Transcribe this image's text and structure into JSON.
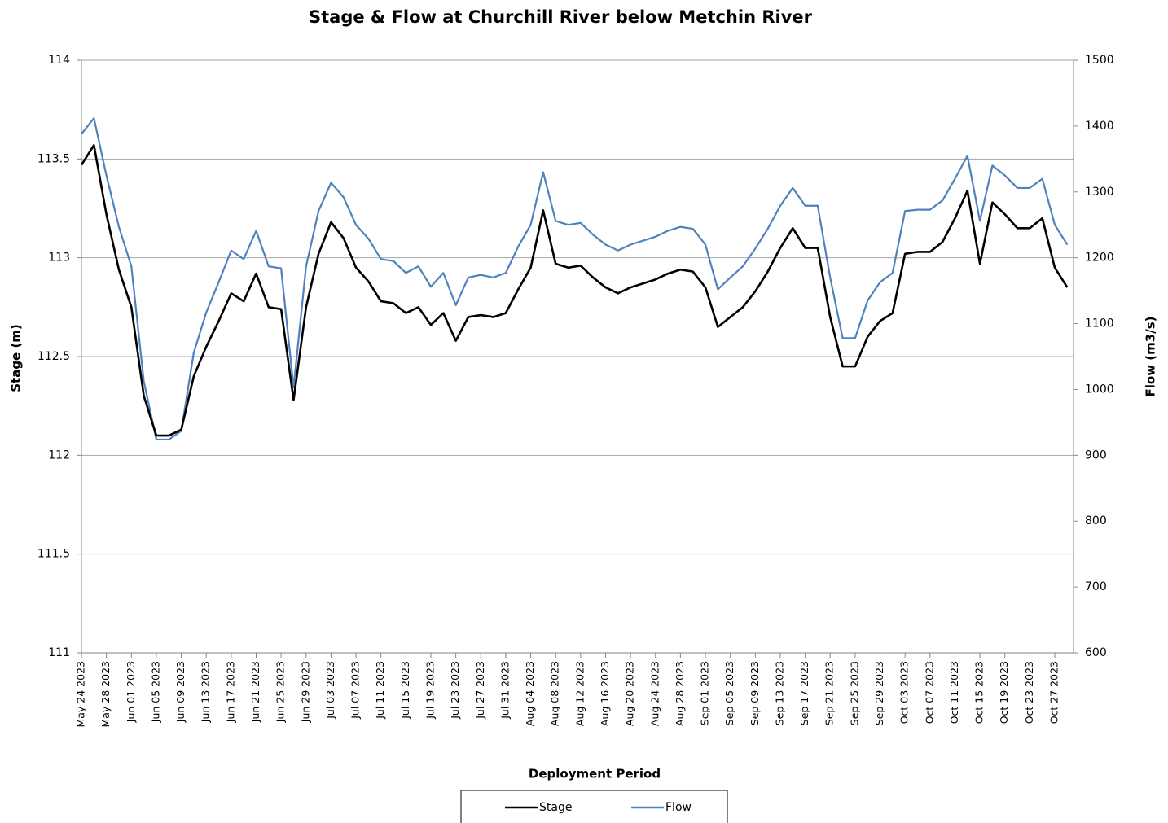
{
  "chart_data": {
    "type": "line",
    "title": "Stage & Flow at Churchill River below Metchin River",
    "xlabel": "Deployment Period",
    "ylabel": "Stage (m)",
    "y2label": "Flow (m3/s)",
    "x": [
      "May 24 2023",
      "May 26 2023",
      "May 28 2023",
      "May 30 2023",
      "Jun 01 2023",
      "Jun 03 2023",
      "Jun 05 2023",
      "Jun 07 2023",
      "Jun 09 2023",
      "Jun 11 2023",
      "Jun 13 2023",
      "Jun 15 2023",
      "Jun 17 2023",
      "Jun 19 2023",
      "Jun 21 2023",
      "Jun 23 2023",
      "Jun 25 2023",
      "Jun 27 2023",
      "Jun 29 2023",
      "Jul 01 2023",
      "Jul 03 2023",
      "Jul 05 2023",
      "Jul 07 2023",
      "Jul 09 2023",
      "Jul 11 2023",
      "Jul 13 2023",
      "Jul 15 2023",
      "Jul 17 2023",
      "Jul 19 2023",
      "Jul 21 2023",
      "Jul 23 2023",
      "Jul 25 2023",
      "Jul 27 2023",
      "Jul 29 2023",
      "Jul 31 2023",
      "Aug 02 2023",
      "Aug 04 2023",
      "Aug 06 2023",
      "Aug 08 2023",
      "Aug 10 2023",
      "Aug 12 2023",
      "Aug 14 2023",
      "Aug 16 2023",
      "Aug 18 2023",
      "Aug 20 2023",
      "Aug 22 2023",
      "Aug 24 2023",
      "Aug 26 2023",
      "Aug 28 2023",
      "Aug 30 2023",
      "Sep 01 2023",
      "Sep 03 2023",
      "Sep 05 2023",
      "Sep 07 2023",
      "Sep 09 2023",
      "Sep 11 2023",
      "Sep 13 2023",
      "Sep 15 2023",
      "Sep 17 2023",
      "Sep 19 2023",
      "Sep 21 2023",
      "Sep 23 2023",
      "Sep 25 2023",
      "Sep 27 2023",
      "Sep 29 2023",
      "Oct 01 2023",
      "Oct 03 2023",
      "Oct 05 2023",
      "Oct 07 2023",
      "Oct 09 2023",
      "Oct 11 2023",
      "Oct 13 2023",
      "Oct 15 2023",
      "Oct 17 2023",
      "Oct 19 2023",
      "Oct 21 2023",
      "Oct 23 2023",
      "Oct 25 2023",
      "Oct 27 2023",
      "Oct 29 2023"
    ],
    "series": [
      {
        "name": "Stage",
        "color": "#000000",
        "values": [
          113.47,
          113.57,
          113.22,
          112.94,
          112.75,
          112.3,
          112.1,
          112.1,
          112.13,
          112.4,
          112.55,
          112.68,
          112.82,
          112.78,
          112.92,
          112.75,
          112.74,
          112.28,
          112.75,
          113.02,
          113.18,
          113.1,
          112.95,
          112.88,
          112.78,
          112.77,
          112.72,
          112.75,
          112.66,
          112.72,
          112.58,
          112.7,
          112.71,
          112.7,
          112.72,
          112.84,
          112.95,
          113.24,
          112.97,
          112.95,
          112.96,
          112.9,
          112.85,
          112.82,
          112.85,
          112.87,
          112.89,
          112.92,
          112.94,
          112.93,
          112.85,
          112.65,
          112.7,
          112.75,
          112.83,
          112.93,
          113.05,
          113.15,
          113.05,
          113.05,
          112.7,
          112.45,
          112.45,
          112.6,
          112.68,
          112.72,
          113.02,
          113.03,
          113.03,
          113.08,
          113.2,
          113.34,
          112.97,
          113.28,
          113.22,
          113.15,
          113.15,
          113.2,
          112.95,
          112.85
        ]
      },
      {
        "name": "Flow",
        "color": "#4f81bd",
        "axis": "y2",
        "values": [
          1388,
          1412,
          1325,
          1247,
          1187,
          1012,
          924,
          924,
          937,
          1056,
          1117,
          1163,
          1211,
          1198,
          1241,
          1187,
          1184,
          1003,
          1187,
          1271,
          1314,
          1292,
          1250,
          1229,
          1198,
          1195,
          1177,
          1187,
          1156,
          1177,
          1128,
          1170,
          1174,
          1170,
          1177,
          1217,
          1250,
          1330,
          1256,
          1250,
          1253,
          1235,
          1220,
          1211,
          1220,
          1226,
          1232,
          1241,
          1247,
          1244,
          1220,
          1152,
          1170,
          1187,
          1214,
          1244,
          1279,
          1306,
          1279,
          1279,
          1170,
          1078,
          1078,
          1135,
          1163,
          1177,
          1271,
          1273,
          1273,
          1287,
          1320,
          1355,
          1256,
          1340,
          1325,
          1306,
          1306,
          1320,
          1250,
          1220
        ]
      }
    ],
    "xlim": [
      "May 24 2023",
      "Oct 30 2023"
    ],
    "xticks": [
      "May 24 2023",
      "May 28 2023",
      "Jun 01 2023",
      "Jun 05 2023",
      "Jun 09 2023",
      "Jun 13 2023",
      "Jun 17 2023",
      "Jun 21 2023",
      "Jun 25 2023",
      "Jun 29 2023",
      "Jul 03 2023",
      "Jul 07 2023",
      "Jul 11 2023",
      "Jul 15 2023",
      "Jul 19 2023",
      "Jul 23 2023",
      "Jul 27 2023",
      "Jul 31 2023",
      "Aug 04 2023",
      "Aug 08 2023",
      "Aug 12 2023",
      "Aug 16 2023",
      "Aug 20 2023",
      "Aug 24 2023",
      "Aug 28 2023",
      "Sep 01 2023",
      "Sep 05 2023",
      "Sep 09 2023",
      "Sep 13 2023",
      "Sep 17 2023",
      "Sep 21 2023",
      "Sep 25 2023",
      "Sep 29 2023",
      "Oct 03 2023",
      "Oct 07 2023",
      "Oct 11 2023",
      "Oct 15 2023",
      "Oct 19 2023",
      "Oct 23 2023",
      "Oct 27 2023"
    ],
    "ylim": [
      111,
      114
    ],
    "yticks": [
      111,
      111.5,
      112,
      112.5,
      113,
      113.5,
      114
    ],
    "y2lim": [
      600,
      1500
    ],
    "y2ticks": [
      600,
      700,
      800,
      900,
      1000,
      1100,
      1200,
      1300,
      1400,
      1500
    ],
    "grid": true,
    "legend": "bottom"
  }
}
